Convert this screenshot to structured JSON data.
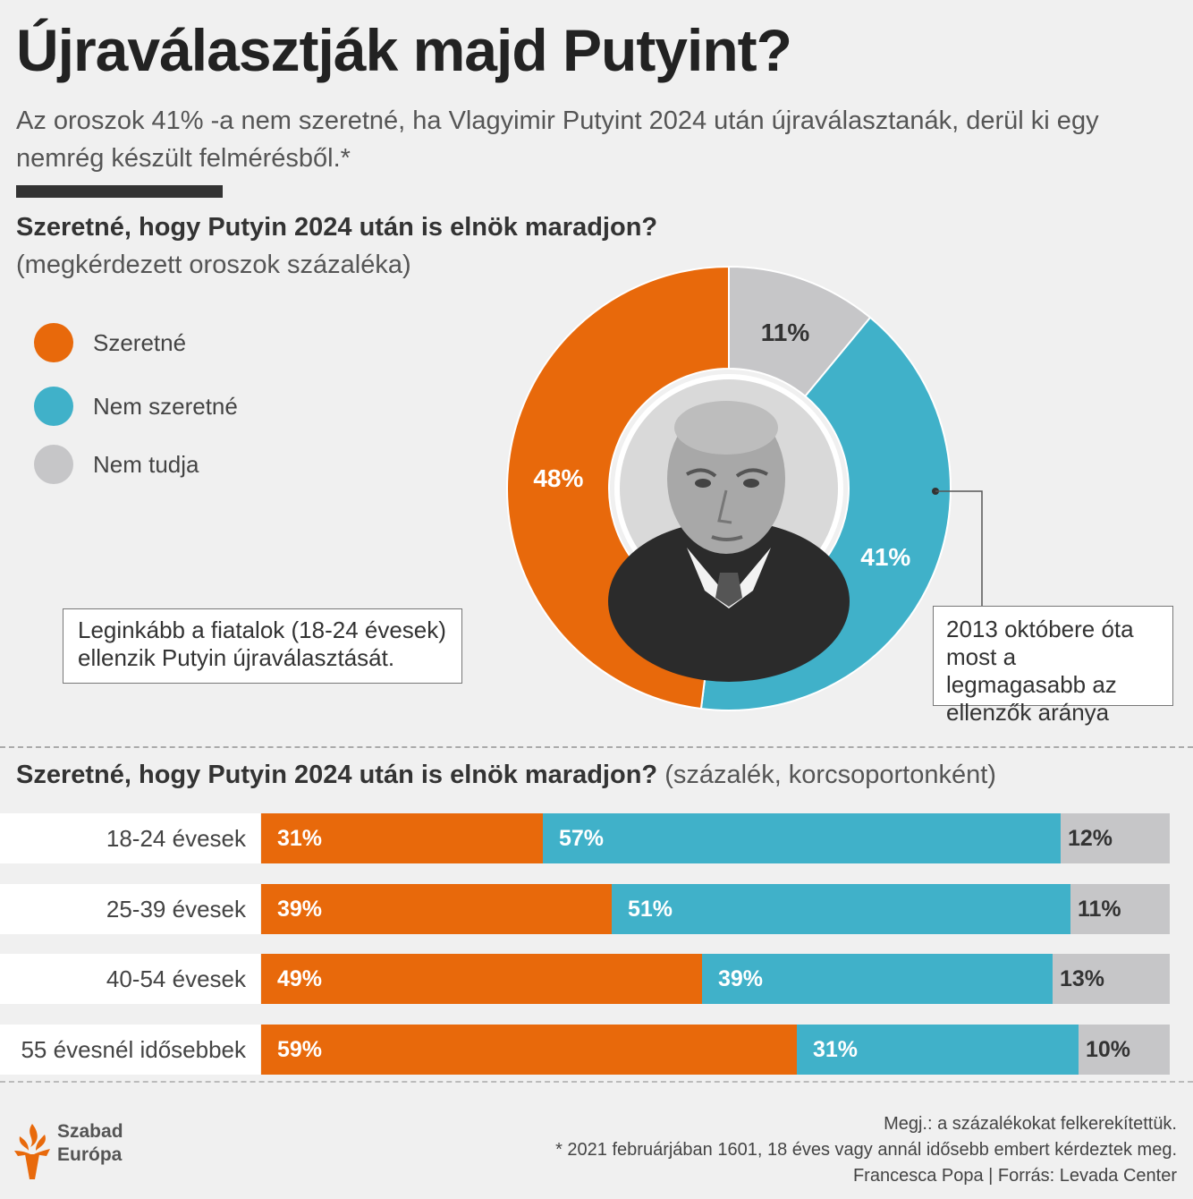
{
  "title": "Újraválasztják majd Putyint?",
  "subtitle": "Az oroszok 41% -a nem szeretné, ha Vlagyimir Putyint 2024 után újraválasztanák, derül ki egy nemrég készült felmérésből.*",
  "colors": {
    "orange": "#e8690b",
    "blue": "#40b1c9",
    "grey": "#c6c6c8"
  },
  "chart_data": [
    {
      "type": "pie",
      "title": "Szeretné, hogy Putyin 2024 után is elnök maradjon?",
      "subtitle": "(megkérdezett oroszok százaléka)",
      "legend_position": "left",
      "slices": [
        {
          "name": "Nem tudja",
          "value": 11,
          "label": "11%",
          "color": "#c6c6c8"
        },
        {
          "name": "Nem szeretné",
          "value": 41,
          "label": "41%",
          "color": "#40b1c9"
        },
        {
          "name": "Szeretné",
          "value": 48,
          "label": "48%",
          "color": "#e8690b"
        }
      ],
      "legend": [
        {
          "label": "Szeretné",
          "color": "#e8690b"
        },
        {
          "label": "Nem szeretné",
          "color": "#40b1c9"
        },
        {
          "label": "Nem tudja",
          "color": "#c6c6c8"
        }
      ],
      "annotations": {
        "left": "Leginkább a fiatalok (18-24 évesek) ellenzik Putyin újraválasztását.",
        "right": "2013 októbere óta most a legmagasabb az ellenzők aránya"
      }
    },
    {
      "type": "bar",
      "orientation": "horizontal",
      "stacked": true,
      "title": "Szeretné, hogy Putyin 2024 után is elnök maradjon?",
      "title_suffix": "(százalék, korcsoportonként)",
      "categories": [
        "18-24 évesek",
        "25-39 évesek",
        "40-54 évesek",
        "55 évesnél idősebbek"
      ],
      "series": [
        {
          "name": "Szeretné",
          "color": "#e8690b",
          "values": [
            31,
            39,
            49,
            59
          ],
          "labels": [
            "31%",
            "39%",
            "49%",
            "59%"
          ]
        },
        {
          "name": "Nem szeretné",
          "color": "#40b1c9",
          "values": [
            57,
            51,
            39,
            31
          ],
          "labels": [
            "57%",
            "51%",
            "39%",
            "31%"
          ]
        },
        {
          "name": "Nem tudja",
          "color": "#c6c6c8",
          "values": [
            12,
            11,
            13,
            10
          ],
          "labels": [
            "12%",
            "11%",
            "13%",
            "10%"
          ]
        }
      ]
    }
  ],
  "logo": {
    "line1": "Szabad",
    "line2": "Európa",
    "icon": "torch-icon"
  },
  "footer": {
    "note": "Megj.: a százalékokat felkerekítettük.",
    "survey": "* 2021 februárjában 1601, 18 éves vagy annál idősebb embert kérdeztek meg.",
    "credit": "Francesca Popa | Forrás: Levada Center"
  }
}
